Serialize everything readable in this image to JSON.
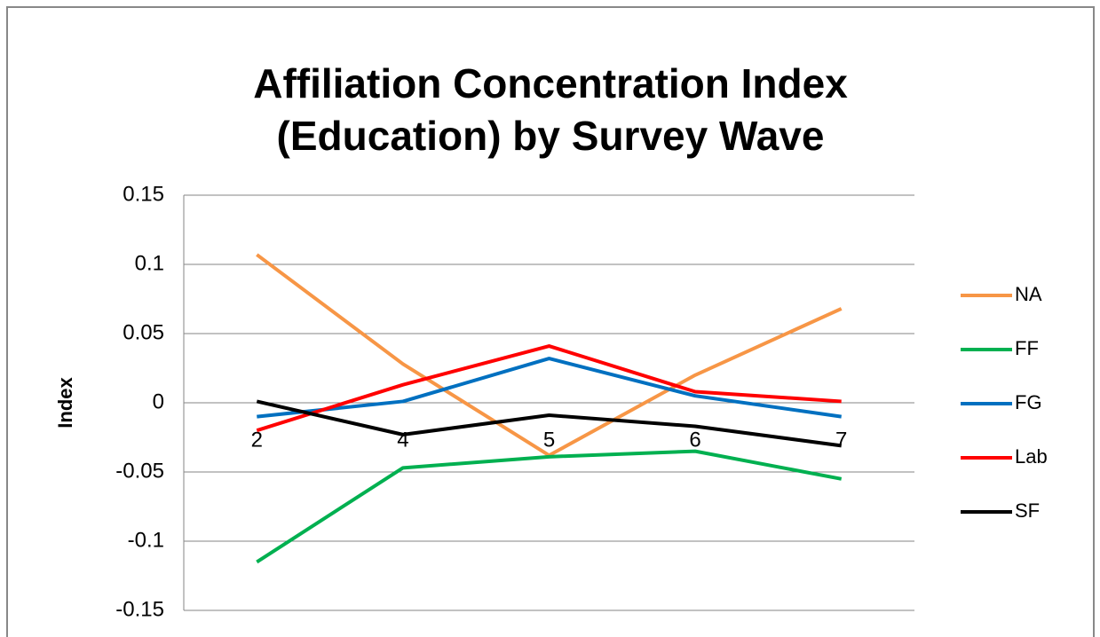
{
  "chart_data": {
    "type": "line",
    "title": [
      "Affiliation Concentration Index",
      "(Education) by Survey Wave"
    ],
    "y_label": "Index",
    "categories": [
      "2",
      "4",
      "5",
      "6",
      "7"
    ],
    "series": [
      {
        "name": "NA",
        "color": "#f79646",
        "values": [
          0.107,
          0.028,
          -0.038,
          0.02,
          0.068
        ]
      },
      {
        "name": "FF",
        "color": "#00b050",
        "values": [
          -0.115,
          -0.047,
          -0.039,
          -0.035,
          -0.055
        ]
      },
      {
        "name": "FG",
        "color": "#0070c0",
        "values": [
          -0.01,
          0.001,
          0.032,
          0.005,
          -0.01
        ]
      },
      {
        "name": "Lab",
        "color": "#ff0000",
        "values": [
          -0.02,
          0.013,
          0.041,
          0.008,
          0.001
        ]
      },
      {
        "name": "SF",
        "color": "#000000",
        "values": [
          0.001,
          -0.023,
          -0.009,
          -0.017,
          -0.031
        ]
      }
    ],
    "ylim": [
      -0.15,
      0.15
    ],
    "yticks": [
      0.15,
      0.1,
      0.05,
      0,
      -0.05,
      -0.1,
      -0.15
    ],
    "grid": true,
    "legend": "right"
  }
}
